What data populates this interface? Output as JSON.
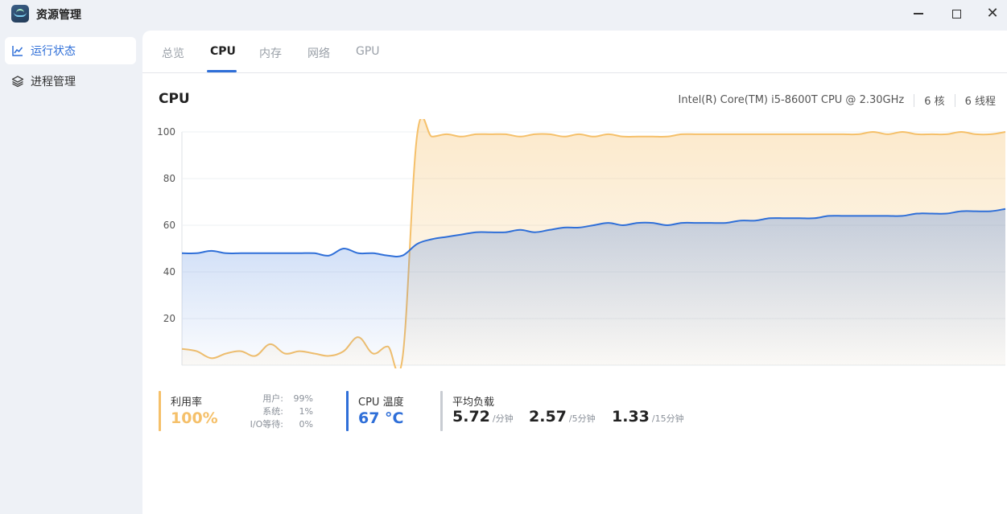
{
  "window": {
    "title": "资源管理",
    "close_glyph": "✕"
  },
  "sidebar": {
    "items": [
      {
        "label": "运行状态",
        "icon": "line-chart-icon",
        "active": true
      },
      {
        "label": "进程管理",
        "icon": "layers-icon",
        "active": false
      }
    ]
  },
  "tabs": [
    {
      "label": "总览"
    },
    {
      "label": "CPU",
      "active": true
    },
    {
      "label": "内存"
    },
    {
      "label": "网络"
    },
    {
      "label": "GPU"
    }
  ],
  "cpu": {
    "title": "CPU",
    "model": "Intel(R) Core(TM) i5-8600T CPU @ 2.30GHz",
    "cores": "6 核",
    "threads": "6 线程"
  },
  "chart_data": {
    "type": "area",
    "ylim": [
      0,
      100
    ],
    "y_ticks": [
      "20",
      "40",
      "60",
      "80",
      "100"
    ],
    "grid": true,
    "series": [
      {
        "color": "#f5c06a",
        "values": [
          7,
          6,
          3,
          5,
          6,
          4,
          9,
          5,
          6,
          5,
          4,
          6,
          12,
          5,
          8,
          3,
          99,
          98,
          99,
          98,
          99,
          99,
          99,
          98,
          99,
          99,
          98,
          99,
          98,
          99,
          98,
          98,
          98,
          98,
          99,
          99,
          99,
          99,
          99,
          99,
          99,
          99,
          99,
          99,
          99,
          99,
          99,
          100,
          99,
          100,
          99,
          99,
          99,
          100,
          99,
          99,
          100
        ]
      },
      {
        "color": "#2f6fd8",
        "values": [
          48,
          48,
          49,
          48,
          48,
          48,
          48,
          48,
          48,
          48,
          47,
          50,
          48,
          48,
          47,
          47,
          52,
          54,
          55,
          56,
          57,
          57,
          57,
          58,
          57,
          58,
          59,
          59,
          60,
          61,
          60,
          61,
          61,
          60,
          61,
          61,
          61,
          61,
          62,
          62,
          63,
          63,
          63,
          63,
          64,
          64,
          64,
          64,
          64,
          64,
          65,
          65,
          65,
          66,
          66,
          66,
          67
        ]
      }
    ]
  },
  "stats": {
    "utilization": {
      "label": "利用率",
      "value": "100%",
      "color": "#f5c06a",
      "details": [
        {
          "label": "用户:",
          "value": "99%"
        },
        {
          "label": "系统:",
          "value": "1%"
        },
        {
          "label": "I/O等待:",
          "value": "0%"
        }
      ]
    },
    "temperature": {
      "label": "CPU 温度",
      "value": "67 °C",
      "color": "#2f6fd8"
    },
    "load": {
      "label": "平均负载",
      "color": "#c8ccd2",
      "items": [
        {
          "value": "5.72",
          "unit": "/分钟"
        },
        {
          "value": "2.57",
          "unit": "/5分钟"
        },
        {
          "value": "1.33",
          "unit": "/15分钟"
        }
      ]
    }
  }
}
